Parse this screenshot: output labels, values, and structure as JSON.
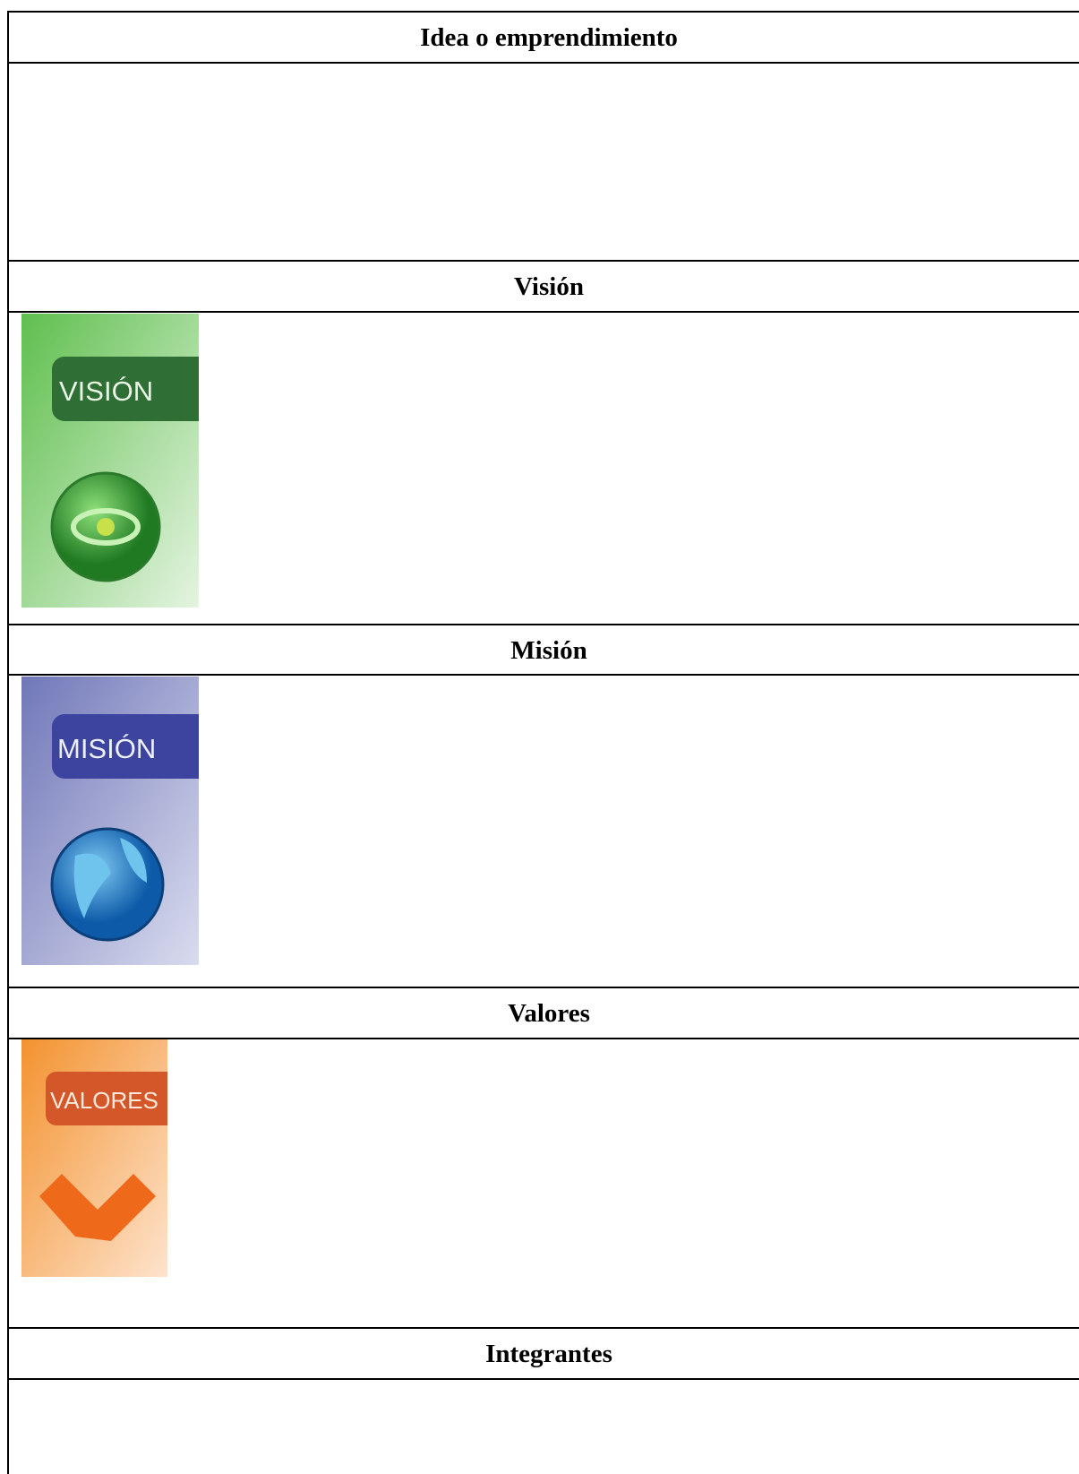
{
  "table": {
    "rows": [
      {
        "header": "Idea o emprendimiento"
      },
      {
        "header": "Visión",
        "image_label": "VISIÓN"
      },
      {
        "header": "Misión",
        "image_label": "MISIÓN"
      },
      {
        "header": "Valores",
        "image_label": "VALORES"
      },
      {
        "header": "Integrantes"
      }
    ]
  }
}
